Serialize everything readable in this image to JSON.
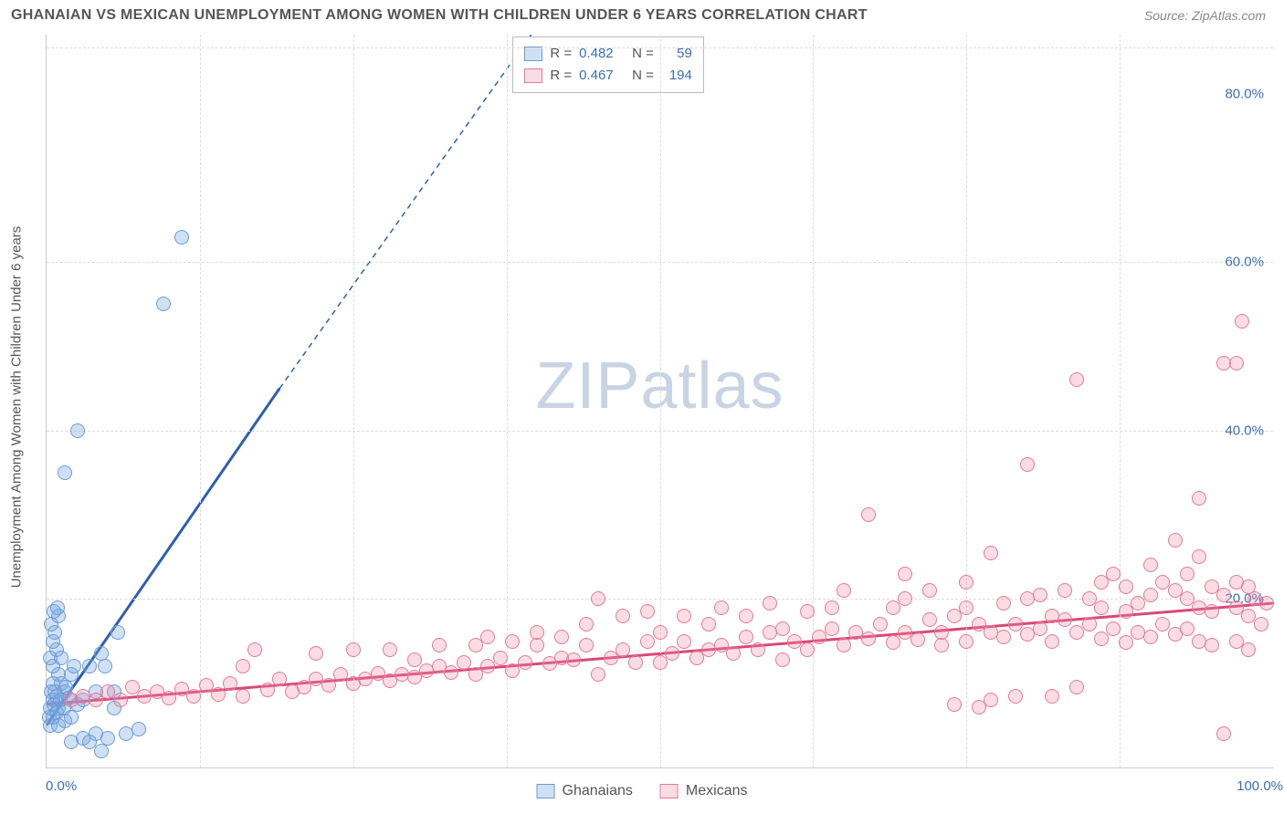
{
  "title": "GHANAIAN VS MEXICAN UNEMPLOYMENT AMONG WOMEN WITH CHILDREN UNDER 6 YEARS CORRELATION CHART",
  "source": "Source: ZipAtlas.com",
  "ylabel": "Unemployment Among Women with Children Under 6 years",
  "watermark_prefix": "ZIP",
  "watermark_suffix": "atlas",
  "chart": {
    "type": "scatter",
    "background_color": "#ffffff",
    "grid_color": "#dddddd",
    "axis_color": "#cccccc",
    "tick_label_color": "#3b6fb6",
    "xlim": [
      0,
      100
    ],
    "ylim": [
      0,
      87
    ],
    "xticks": [
      {
        "pos": 0,
        "label": "0.0%",
        "align": "left"
      },
      {
        "pos": 100,
        "label": "100.0%",
        "align": "right"
      }
    ],
    "xgrid": [
      12.5,
      25,
      37.5,
      50,
      62.5,
      75,
      87.5
    ],
    "yticks": [
      {
        "pos": 20,
        "label": "20.0%"
      },
      {
        "pos": 40,
        "label": "40.0%"
      },
      {
        "pos": 60,
        "label": "60.0%"
      },
      {
        "pos": 80,
        "label": "80.0%"
      }
    ],
    "ygrid": [
      20,
      40,
      60,
      85.5
    ]
  },
  "series": [
    {
      "key": "ghanaians",
      "label": "Ghanaians",
      "R": "0.482",
      "N": "59",
      "fill": "rgba(120,165,220,0.35)",
      "stroke": "#6a9bd8",
      "marker_radius": 8,
      "trend_color": "#2d5fb0",
      "trend_width": 3,
      "trend": {
        "x1": 0,
        "y1": 5,
        "x2": 19,
        "y2": 45,
        "x2_ext": 40,
        "y2_ext": 88
      },
      "points": [
        [
          0.2,
          6
        ],
        [
          0.3,
          7
        ],
        [
          0.5,
          8
        ],
        [
          0.4,
          9
        ],
        [
          0.6,
          7.5
        ],
        [
          0.8,
          8.5
        ],
        [
          1.0,
          7
        ],
        [
          1.2,
          10
        ],
        [
          1.5,
          9
        ],
        [
          1.0,
          11
        ],
        [
          0.3,
          5
        ],
        [
          0.5,
          6
        ],
        [
          0.8,
          6.5
        ],
        [
          1.1,
          8
        ],
        [
          1.4,
          7
        ],
        [
          1.6,
          9.5
        ],
        [
          1.8,
          8.2
        ],
        [
          2.0,
          11
        ],
        [
          2.2,
          12
        ],
        [
          0.5,
          12
        ],
        [
          0.3,
          13
        ],
        [
          0.8,
          14
        ],
        [
          1.2,
          13
        ],
        [
          0.5,
          15
        ],
        [
          0.7,
          16
        ],
        [
          0.4,
          17
        ],
        [
          1.0,
          18
        ],
        [
          0.6,
          18.5
        ],
        [
          0.9,
          19
        ],
        [
          0.5,
          10
        ],
        [
          0.7,
          9
        ],
        [
          1.0,
          5
        ],
        [
          1.5,
          5.5
        ],
        [
          2.0,
          6
        ],
        [
          2.5,
          7.5
        ],
        [
          3.0,
          8
        ],
        [
          3.5,
          12
        ],
        [
          4.0,
          9
        ],
        [
          4.5,
          13.5
        ],
        [
          4.8,
          12
        ],
        [
          5.5,
          9
        ],
        [
          5.8,
          16
        ],
        [
          5.5,
          7
        ],
        [
          2.0,
          3
        ],
        [
          3.0,
          3.5
        ],
        [
          4.0,
          4
        ],
        [
          5.0,
          3.5
        ],
        [
          3.5,
          3
        ],
        [
          4.5,
          2
        ],
        [
          6.5,
          4
        ],
        [
          7.5,
          4.5
        ],
        [
          1.5,
          35
        ],
        [
          2.5,
          40
        ],
        [
          9.5,
          55
        ],
        [
          11,
          63
        ]
      ]
    },
    {
      "key": "mexicans",
      "label": "Mexicans",
      "R": "0.467",
      "N": "194",
      "fill": "rgba(240,140,165,0.30)",
      "stroke": "#e47a98",
      "marker_radius": 8,
      "trend_color": "#d94876",
      "trend_width": 3,
      "trend": {
        "x1": 0,
        "y1": 7.5,
        "x2": 100,
        "y2": 19.5
      },
      "points": [
        [
          2,
          8
        ],
        [
          3,
          8.5
        ],
        [
          4,
          8
        ],
        [
          5,
          9
        ],
        [
          6,
          8
        ],
        [
          7,
          9.5
        ],
        [
          8,
          8.5
        ],
        [
          9,
          9
        ],
        [
          10,
          8.2
        ],
        [
          11,
          9.3
        ],
        [
          12,
          8.5
        ],
        [
          13,
          9.8
        ],
        [
          14,
          8.7
        ],
        [
          15,
          10
        ],
        [
          16,
          8.5
        ],
        [
          16,
          12
        ],
        [
          17,
          14
        ],
        [
          18,
          9.2
        ],
        [
          19,
          10.5
        ],
        [
          20,
          9
        ],
        [
          21,
          9.5
        ],
        [
          22,
          10.5
        ],
        [
          22,
          13.5
        ],
        [
          23,
          9.8
        ],
        [
          24,
          11
        ],
        [
          25,
          10
        ],
        [
          25,
          14
        ],
        [
          26,
          10.5
        ],
        [
          27,
          11.2
        ],
        [
          28,
          10.3
        ],
        [
          28,
          14
        ],
        [
          29,
          11
        ],
        [
          30,
          10.7
        ],
        [
          30,
          12.8
        ],
        [
          31,
          11.5
        ],
        [
          32,
          12
        ],
        [
          32,
          14.5
        ],
        [
          33,
          11.3
        ],
        [
          34,
          12.5
        ],
        [
          35,
          11
        ],
        [
          35,
          14.5
        ],
        [
          36,
          12
        ],
        [
          36,
          15.5
        ],
        [
          37,
          13
        ],
        [
          38,
          11.5
        ],
        [
          38,
          15
        ],
        [
          39,
          12.5
        ],
        [
          40,
          14.5
        ],
        [
          40,
          16
        ],
        [
          41,
          12.3
        ],
        [
          42,
          13
        ],
        [
          42,
          15.5
        ],
        [
          43,
          12.8
        ],
        [
          44,
          14.5
        ],
        [
          44,
          17
        ],
        [
          45,
          11
        ],
        [
          45,
          20
        ],
        [
          46,
          13
        ],
        [
          47,
          14
        ],
        [
          47,
          18
        ],
        [
          48,
          12.5
        ],
        [
          49,
          15
        ],
        [
          49,
          18.5
        ],
        [
          50,
          12.5
        ],
        [
          50,
          16
        ],
        [
          51,
          13.5
        ],
        [
          52,
          15
        ],
        [
          52,
          18
        ],
        [
          53,
          13
        ],
        [
          54,
          14
        ],
        [
          54,
          17
        ],
        [
          55,
          14.5
        ],
        [
          55,
          19
        ],
        [
          56,
          13.5
        ],
        [
          57,
          15.5
        ],
        [
          57,
          18
        ],
        [
          58,
          14
        ],
        [
          59,
          16
        ],
        [
          59,
          19.5
        ],
        [
          60,
          12.8
        ],
        [
          60,
          16.5
        ],
        [
          61,
          15
        ],
        [
          62,
          14
        ],
        [
          62,
          18.5
        ],
        [
          63,
          15.5
        ],
        [
          64,
          16.5
        ],
        [
          64,
          19
        ],
        [
          65,
          14.5
        ],
        [
          65,
          21
        ],
        [
          66,
          16
        ],
        [
          67,
          15.3
        ],
        [
          67,
          30
        ],
        [
          68,
          17
        ],
        [
          69,
          14.8
        ],
        [
          69,
          19
        ],
        [
          70,
          16
        ],
        [
          70,
          20
        ],
        [
          70,
          23
        ],
        [
          71,
          15.2
        ],
        [
          72,
          17.5
        ],
        [
          72,
          21
        ],
        [
          73,
          14.5
        ],
        [
          73,
          16
        ],
        [
          74,
          18
        ],
        [
          74,
          7.5
        ],
        [
          75,
          15
        ],
        [
          75,
          19
        ],
        [
          75,
          22
        ],
        [
          76,
          7.2
        ],
        [
          76,
          17
        ],
        [
          77,
          8
        ],
        [
          77,
          16
        ],
        [
          77,
          25.5
        ],
        [
          78,
          15.5
        ],
        [
          78,
          19.5
        ],
        [
          79,
          8.5
        ],
        [
          79,
          17
        ],
        [
          80,
          15.8
        ],
        [
          80,
          20
        ],
        [
          80,
          36
        ],
        [
          81,
          16.5
        ],
        [
          81,
          20.5
        ],
        [
          82,
          8.5
        ],
        [
          82,
          15
        ],
        [
          82,
          18
        ],
        [
          83,
          17.5
        ],
        [
          83,
          21
        ],
        [
          84,
          9.5
        ],
        [
          84,
          16
        ],
        [
          84,
          46
        ],
        [
          85,
          17
        ],
        [
          85,
          20
        ],
        [
          86,
          15.3
        ],
        [
          86,
          19
        ],
        [
          86,
          22
        ],
        [
          87,
          16.5
        ],
        [
          87,
          23
        ],
        [
          88,
          14.8
        ],
        [
          88,
          18.5
        ],
        [
          88,
          21.5
        ],
        [
          89,
          16
        ],
        [
          89,
          19.5
        ],
        [
          90,
          15.5
        ],
        [
          90,
          20.5
        ],
        [
          90,
          24
        ],
        [
          91,
          17
        ],
        [
          91,
          22
        ],
        [
          92,
          15.8
        ],
        [
          92,
          21
        ],
        [
          92,
          27
        ],
        [
          93,
          16.5
        ],
        [
          93,
          20
        ],
        [
          93,
          23
        ],
        [
          94,
          15
        ],
        [
          94,
          19
        ],
        [
          94,
          25
        ],
        [
          94,
          32
        ],
        [
          95,
          14.5
        ],
        [
          95,
          18.5
        ],
        [
          95,
          21.5
        ],
        [
          96,
          4
        ],
        [
          96,
          20.5
        ],
        [
          96,
          48
        ],
        [
          97,
          15
        ],
        [
          97,
          22
        ],
        [
          97,
          19
        ],
        [
          97,
          48
        ],
        [
          97.5,
          53
        ],
        [
          98,
          14
        ],
        [
          98,
          18
        ],
        [
          98,
          21.5
        ],
        [
          98.5,
          20
        ],
        [
          99,
          17
        ],
        [
          99.5,
          19.5
        ]
      ]
    }
  ],
  "stat_labels": {
    "R": "R =",
    "N": "N ="
  }
}
